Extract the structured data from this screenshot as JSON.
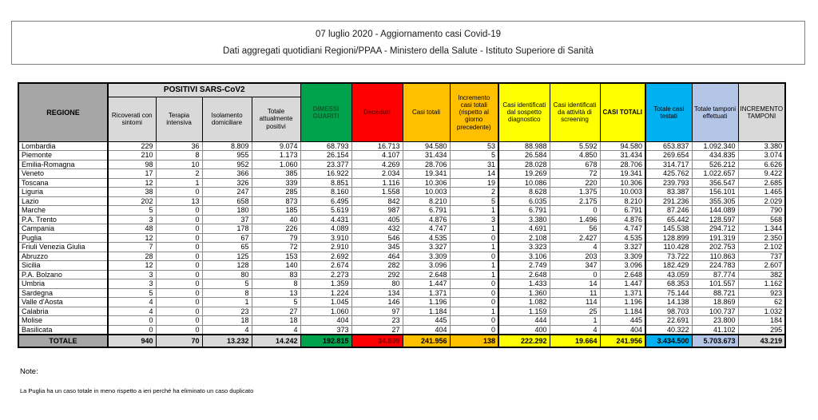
{
  "header": {
    "line1": "07 luglio 2020 - Aggiornamento casi Covid-19",
    "line2": "Dati aggregati quotidiani Regioni/PPAA - Ministero della Salute - Istituto Superiore di Sanità"
  },
  "colors": {
    "green": "#00A24C",
    "green_text": "#0B5D2B",
    "red": "#FF0000",
    "red_text": "#7F0000",
    "orange": "#FFC000",
    "yellow": "#FFFF00",
    "cyan": "#00B0F0",
    "periwinkle": "#B4C6E7",
    "gray_dark": "#A6A6A6",
    "gray_light": "#D9D9D9"
  },
  "table": {
    "group_header": "POSITIVI SARS-CoV2",
    "columns": [
      {
        "id": "regione",
        "label": "REGIONE",
        "header_bg": "#A6A6A6",
        "header_fg": "#000000",
        "header_bold": true,
        "total_bg": "#A6A6A6",
        "total_fg": "#000000",
        "thick_right": true
      },
      {
        "id": "ricoverati_con_sintomi",
        "label": "Ricoverati con sintomi",
        "header_bg": "#D9D9D9",
        "header_fg": "#000000",
        "header_bold": false,
        "total_bg": "#D9D9D9",
        "total_fg": "#000000",
        "thick_right": false
      },
      {
        "id": "terapia_intensiva",
        "label": "Terapia intensiva",
        "header_bg": "#D9D9D9",
        "header_fg": "#000000",
        "header_bold": false,
        "total_bg": "#D9D9D9",
        "total_fg": "#000000",
        "thick_right": false
      },
      {
        "id": "isolamento_domiciliare",
        "label": "Isolamento domiciliare",
        "header_bg": "#D9D9D9",
        "header_fg": "#000000",
        "header_bold": false,
        "total_bg": "#D9D9D9",
        "total_fg": "#000000",
        "thick_right": false
      },
      {
        "id": "totale_attualmente_positivi",
        "label": "Totale attualmente positivi",
        "header_bg": "#D9D9D9",
        "header_fg": "#000000",
        "header_bold": false,
        "total_bg": "#D9D9D9",
        "total_fg": "#000000",
        "thick_right": false
      },
      {
        "id": "dimessi_guariti",
        "label": "DIMESSI GUARITI",
        "header_bg": "#00A24C",
        "header_fg": "#0B5D2B",
        "header_bold": true,
        "total_bg": "#00A24C",
        "total_fg": "#000000",
        "thick_right": false
      },
      {
        "id": "deceduti",
        "label": "Deceduti",
        "header_bg": "#FF0000",
        "header_fg": "#7F0000",
        "header_bold": true,
        "total_bg": "#FF0000",
        "total_fg": "#7F0000",
        "thick_right": false
      },
      {
        "id": "casi_totali",
        "label": "Casi totali",
        "header_bg": "#FFC000",
        "header_fg": "#000000",
        "header_bold": false,
        "total_bg": "#FFC000",
        "total_fg": "#000000",
        "thick_right": false
      },
      {
        "id": "incremento_casi_totali",
        "label": "Incremento casi totali (rispetto al giorno precedente)",
        "header_bg": "#FFC000",
        "header_fg": "#000000",
        "header_bold": false,
        "total_bg": "#FFC000",
        "total_fg": "#000000",
        "thick_right": true
      },
      {
        "id": "casi_sospetto_diagnostico",
        "label": "Casi identificati dal sospetto diagnostico",
        "header_bg": "#FFFF00",
        "header_fg": "#000000",
        "header_bold": false,
        "total_bg": "#FFFF00",
        "total_fg": "#000000",
        "thick_right": false
      },
      {
        "id": "casi_attivita_screening",
        "label": "Casi identificati da attività di screening",
        "header_bg": "#FFFF00",
        "header_fg": "#000000",
        "header_bold": false,
        "total_bg": "#FFFF00",
        "total_fg": "#000000",
        "thick_right": false
      },
      {
        "id": "casi_totali_2",
        "label": "CASI TOTALI",
        "header_bg": "#FFFF00",
        "header_fg": "#000000",
        "header_bold": true,
        "total_bg": "#FFFF00",
        "total_fg": "#000000",
        "thick_right": true
      },
      {
        "id": "totale_casi_testati",
        "label": "Totale casi testati",
        "header_bg": "#00B0F0",
        "header_fg": "#000000",
        "header_bold": false,
        "total_bg": "#00B0F0",
        "total_fg": "#000000",
        "thick_right": false
      },
      {
        "id": "totale_tamponi_effettuati",
        "label": "Totale tamponi effettuati",
        "header_bg": "#B4C6E7",
        "header_fg": "#000000",
        "header_bold": false,
        "total_bg": "#B4C6E7",
        "total_fg": "#000000",
        "thick_right": false
      },
      {
        "id": "incremento_tamponi",
        "label": "INCREMENTO TAMPONI",
        "header_bg": "#D9D9D9",
        "header_fg": "#000000",
        "header_bold": false,
        "total_bg": "#D9D9D9",
        "total_fg": "#000000",
        "thick_right": false
      }
    ],
    "rows": [
      [
        "Lombardia",
        "229",
        "36",
        "8.809",
        "9.074",
        "68.793",
        "16.713",
        "94.580",
        "53",
        "88.988",
        "5.592",
        "94.580",
        "653.837",
        "1.092.340",
        "3.380"
      ],
      [
        "Piemonte",
        "210",
        "8",
        "955",
        "1.173",
        "26.154",
        "4.107",
        "31.434",
        "5",
        "26.584",
        "4.850",
        "31.434",
        "269.654",
        "434.835",
        "3.074"
      ],
      [
        "Emilia-Romagna",
        "98",
        "10",
        "952",
        "1.060",
        "23.377",
        "4.269",
        "28.706",
        "31",
        "28.028",
        "678",
        "28.706",
        "314.717",
        "526.212",
        "6.626"
      ],
      [
        "Veneto",
        "17",
        "2",
        "366",
        "385",
        "16.922",
        "2.034",
        "19.341",
        "14",
        "19.269",
        "72",
        "19.341",
        "425.762",
        "1.022.657",
        "9.422"
      ],
      [
        "Toscana",
        "12",
        "1",
        "326",
        "339",
        "8.851",
        "1.116",
        "10.306",
        "19",
        "10.086",
        "220",
        "10.306",
        "239.793",
        "356.547",
        "2.685"
      ],
      [
        "Liguria",
        "38",
        "0",
        "247",
        "285",
        "8.160",
        "1.558",
        "10.003",
        "2",
        "8.628",
        "1.375",
        "10.003",
        "83.387",
        "156.101",
        "1.465"
      ],
      [
        "Lazio",
        "202",
        "13",
        "658",
        "873",
        "6.495",
        "842",
        "8.210",
        "5",
        "6.035",
        "2.175",
        "8.210",
        "291.236",
        "355.305",
        "2.029"
      ],
      [
        "Marche",
        "5",
        "0",
        "180",
        "185",
        "5.619",
        "987",
        "6.791",
        "1",
        "6.791",
        "0",
        "6.791",
        "87.246",
        "144.089",
        "790"
      ],
      [
        "P.A. Trento",
        "3",
        "0",
        "37",
        "40",
        "4.431",
        "405",
        "4.876",
        "3",
        "3.380",
        "1.496",
        "4.876",
        "65.442",
        "128.597",
        "568"
      ],
      [
        "Campania",
        "48",
        "0",
        "178",
        "226",
        "4.089",
        "432",
        "4.747",
        "1",
        "4.691",
        "56",
        "4.747",
        "145.538",
        "294.712",
        "1.344"
      ],
      [
        "Puglia",
        "12",
        "0",
        "67",
        "79",
        "3.910",
        "546",
        "4.535",
        "0",
        "2.108",
        "2.427",
        "4.535",
        "128.899",
        "191.319",
        "2.350"
      ],
      [
        "Friuli Venezia Giulia",
        "7",
        "0",
        "65",
        "72",
        "2.910",
        "345",
        "3.327",
        "1",
        "3.323",
        "4",
        "3.327",
        "110.428",
        "202.753",
        "2.102"
      ],
      [
        "Abruzzo",
        "28",
        "0",
        "125",
        "153",
        "2.692",
        "464",
        "3.309",
        "0",
        "3.106",
        "203",
        "3.309",
        "73.722",
        "110.863",
        "737"
      ],
      [
        "Sicilia",
        "12",
        "0",
        "128",
        "140",
        "2.674",
        "282",
        "3.096",
        "1",
        "2.749",
        "347",
        "3.096",
        "182.429",
        "224.783",
        "2.607"
      ],
      [
        "P.A. Bolzano",
        "3",
        "0",
        "80",
        "83",
        "2.273",
        "292",
        "2.648",
        "1",
        "2.648",
        "0",
        "2.648",
        "43.059",
        "87.774",
        "382"
      ],
      [
        "Umbria",
        "3",
        "0",
        "5",
        "8",
        "1.359",
        "80",
        "1.447",
        "0",
        "1.433",
        "14",
        "1.447",
        "68.353",
        "101.557",
        "1.162"
      ],
      [
        "Sardegna",
        "5",
        "0",
        "8",
        "13",
        "1.224",
        "134",
        "1.371",
        "0",
        "1.360",
        "11",
        "1.371",
        "75.144",
        "88.721",
        "923"
      ],
      [
        "Valle d'Aosta",
        "4",
        "0",
        "1",
        "5",
        "1.045",
        "146",
        "1.196",
        "0",
        "1.082",
        "114",
        "1.196",
        "14.138",
        "18.869",
        "62"
      ],
      [
        "Calabria",
        "4",
        "0",
        "23",
        "27",
        "1.060",
        "97",
        "1.184",
        "1",
        "1.159",
        "25",
        "1.184",
        "98.703",
        "100.737",
        "1.032"
      ],
      [
        "Molise",
        "0",
        "0",
        "18",
        "18",
        "404",
        "23",
        "445",
        "0",
        "444",
        "1",
        "445",
        "22.691",
        "23.800",
        "184"
      ],
      [
        "Basilicata",
        "0",
        "0",
        "4",
        "4",
        "373",
        "27",
        "404",
        "0",
        "400",
        "4",
        "404",
        "40.322",
        "41.102",
        "295"
      ]
    ],
    "total_row": [
      "TOTALE",
      "940",
      "70",
      "13.232",
      "14.242",
      "192.815",
      "34.899",
      "241.956",
      "138",
      "222.292",
      "19.664",
      "241.956",
      "3.434.500",
      "5.703.673",
      "43.219"
    ]
  },
  "notes": {
    "title": "Note:",
    "body": "La Puglia ha un caso totale in meno rispetto a ieri perché ha eliminato un caso duplicato"
  }
}
